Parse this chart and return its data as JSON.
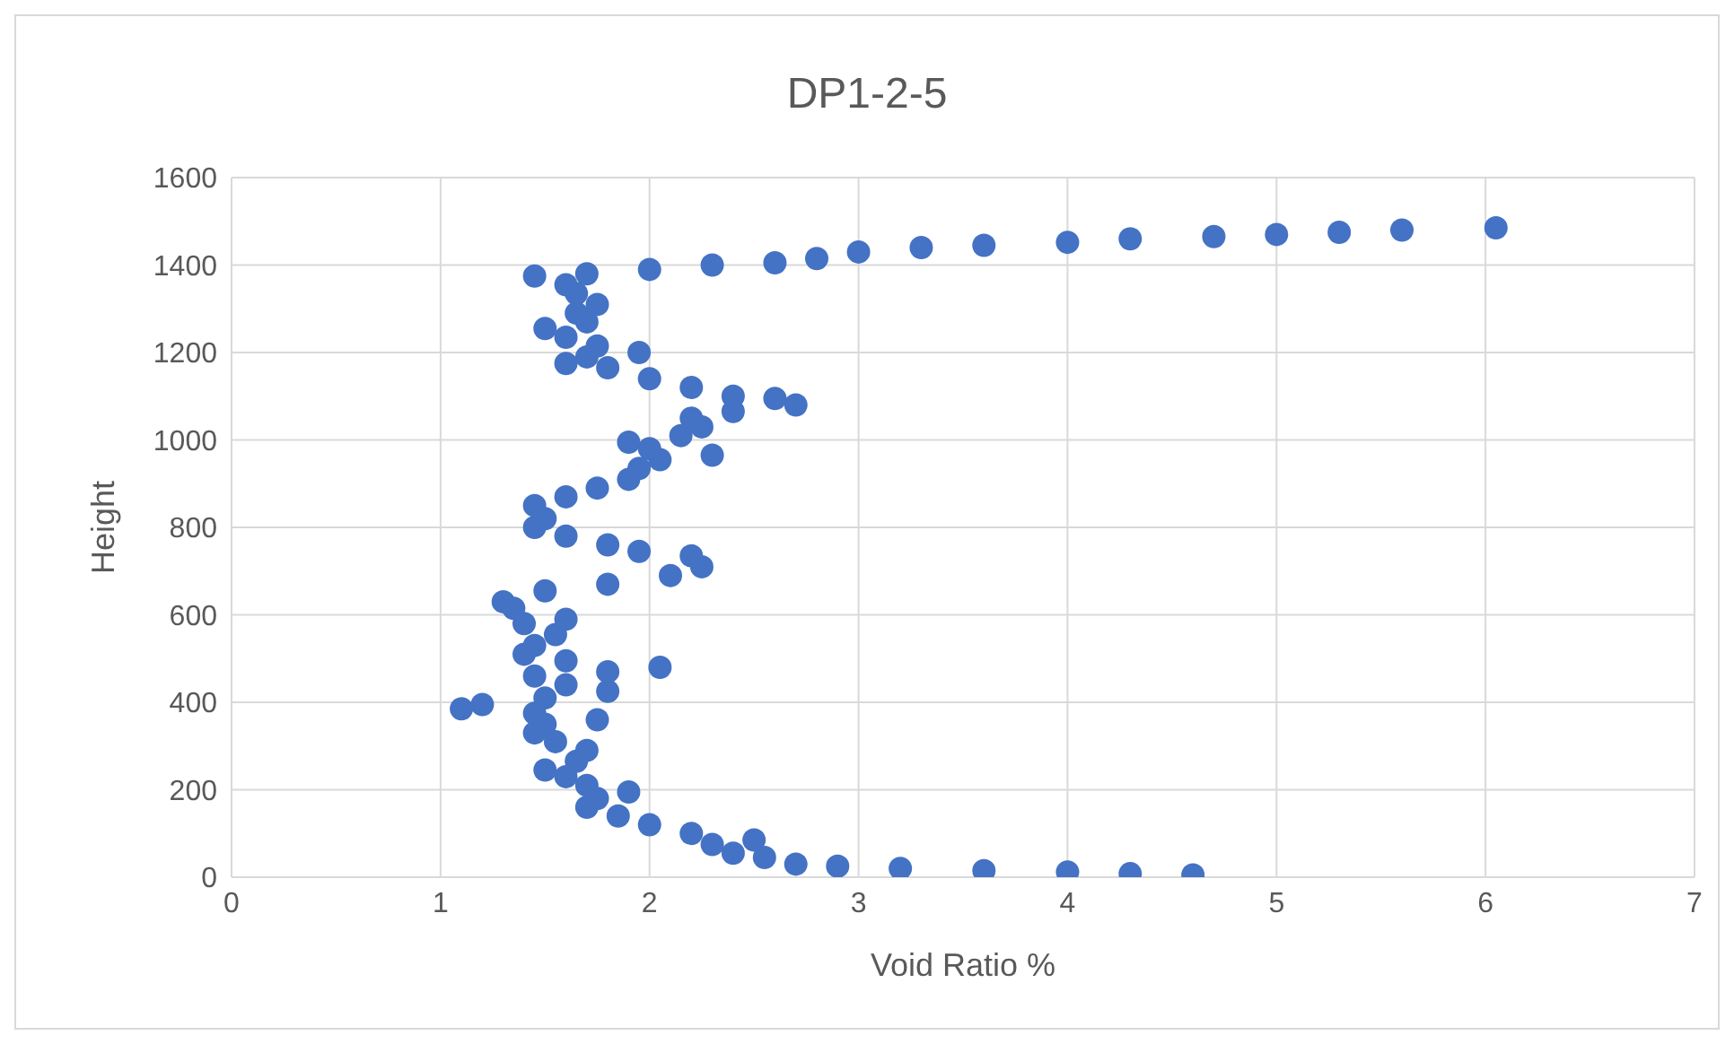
{
  "chart_data": {
    "type": "scatter",
    "title": "DP1-2-5",
    "xlabel": "Void Ratio %",
    "ylabel": "Height",
    "xlim": [
      0,
      7
    ],
    "xticks": [
      0,
      1,
      2,
      3,
      4,
      5,
      6,
      7
    ],
    "ylim": [
      0,
      1600
    ],
    "yticks": [
      0,
      200,
      400,
      600,
      800,
      1000,
      1200,
      1400,
      1600
    ],
    "grid": true,
    "legend": false,
    "marker": "circle",
    "series": [
      {
        "color": "#4472c4",
        "x": [
          4.6,
          4.3,
          4.0,
          3.6,
          3.2,
          2.9,
          2.7,
          2.55,
          2.4,
          2.3,
          2.5,
          2.2,
          2.0,
          1.85,
          1.7,
          1.75,
          1.9,
          1.7,
          1.6,
          1.5,
          1.65,
          1.7,
          1.55,
          1.45,
          1.5,
          1.75,
          1.45,
          1.1,
          1.2,
          1.5,
          1.8,
          1.6,
          1.45,
          1.8,
          2.05,
          1.6,
          1.4,
          1.45,
          1.55,
          1.4,
          1.6,
          1.35,
          1.3,
          1.5,
          1.8,
          2.1,
          2.25,
          2.2,
          1.95,
          1.8,
          1.6,
          1.45,
          1.5,
          1.45,
          1.6,
          1.75,
          1.9,
          1.95,
          2.05,
          2.3,
          2.0,
          1.9,
          2.15,
          2.25,
          2.2,
          2.4,
          2.7,
          2.6,
          2.4,
          2.2,
          2.0,
          1.8,
          1.6,
          1.7,
          1.95,
          1.75,
          1.6,
          1.5,
          1.7,
          1.65,
          1.75,
          1.65,
          1.6,
          1.45,
          1.7,
          2.0,
          2.3,
          2.6,
          2.8,
          3.0,
          3.3,
          3.6,
          4.0,
          4.3,
          4.7,
          5.0,
          5.3,
          5.6,
          6.05
        ],
        "values": [
          5,
          8,
          12,
          15,
          20,
          25,
          30,
          45,
          55,
          75,
          85,
          100,
          120,
          140,
          160,
          180,
          195,
          210,
          230,
          245,
          265,
          290,
          310,
          330,
          350,
          360,
          375,
          385,
          395,
          410,
          425,
          440,
          460,
          470,
          480,
          495,
          510,
          530,
          555,
          580,
          590,
          615,
          630,
          655,
          670,
          690,
          710,
          735,
          745,
          760,
          780,
          800,
          820,
          850,
          870,
          890,
          910,
          935,
          955,
          965,
          980,
          995,
          1010,
          1030,
          1050,
          1065,
          1080,
          1095,
          1100,
          1120,
          1140,
          1165,
          1175,
          1190,
          1200,
          1215,
          1235,
          1255,
          1270,
          1290,
          1310,
          1335,
          1355,
          1375,
          1380,
          1390,
          1400,
          1405,
          1415,
          1430,
          1440,
          1445,
          1452,
          1460,
          1465,
          1470,
          1475,
          1480,
          1485
        ]
      }
    ]
  }
}
